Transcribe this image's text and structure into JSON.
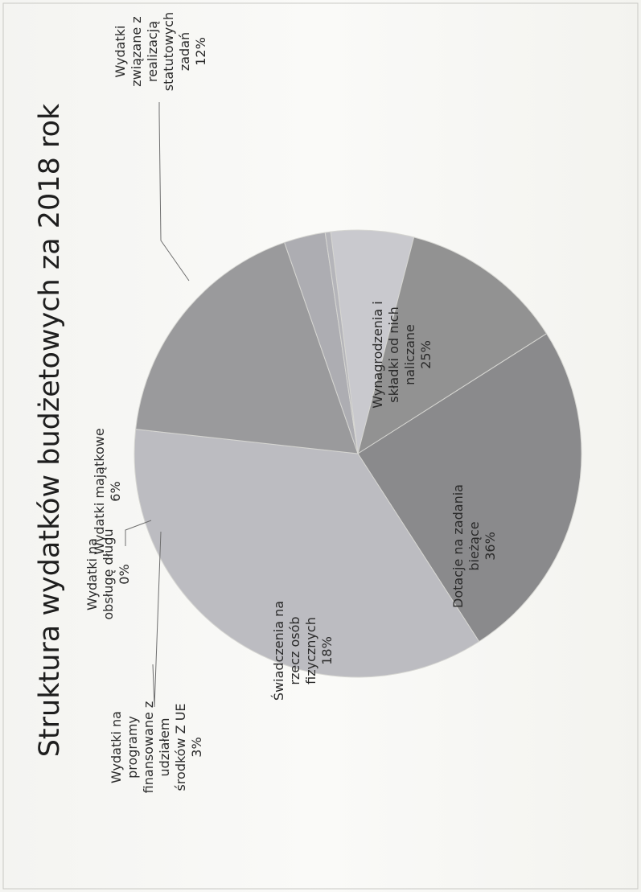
{
  "chart_data": {
    "type": "pie",
    "title": "Struktura wydatków budżetowych za 2018 rok",
    "slices": [
      {
        "name": "Wydatki majątkowe",
        "label_lines": [
          "Wydatki majątkowe",
          "6%"
        ],
        "value": 6,
        "color": "#c9c9ce"
      },
      {
        "name": "Wydatki związane z realizacją statutowych zadań",
        "label_lines": [
          "Wydatki",
          "związane z",
          "realizacją",
          "statutowych",
          "zadań",
          "12%"
        ],
        "value": 12,
        "color": "#929292"
      },
      {
        "name": "Wynagrodzenia i składki od nich naliczane",
        "label_lines": [
          "Wynagrodzenia i",
          "składki od nich",
          "naliczane",
          "25%"
        ],
        "value": 25,
        "color": "#8a8a8c"
      },
      {
        "name": "Dotacje na zadania bieżące",
        "label_lines": [
          "Dotacje na zadania",
          "bieżące",
          "36%"
        ],
        "value": 36,
        "color": "#bcbcc1"
      },
      {
        "name": "Świadczenia na rzecz osób fizycznych",
        "label_lines": [
          "Świadczenia na",
          "rzecz osób",
          "fizycznych",
          "18%"
        ],
        "value": 18,
        "color": "#9a9a9c"
      },
      {
        "name": "Wydatki na programy finansowane z udziałem środków Z UE",
        "label_lines": [
          "Wydatki na",
          "programy",
          "finansowane z",
          "udziałem",
          "środków  Z UE",
          "3%"
        ],
        "value": 3,
        "color": "#adadb2"
      },
      {
        "name": "Wydatki na obsługę długu",
        "label_lines": [
          "Wydatki na",
          "obsługę długu",
          "0%"
        ],
        "value": 0.4,
        "color": "#b5b5ba"
      }
    ],
    "legend": "none"
  }
}
